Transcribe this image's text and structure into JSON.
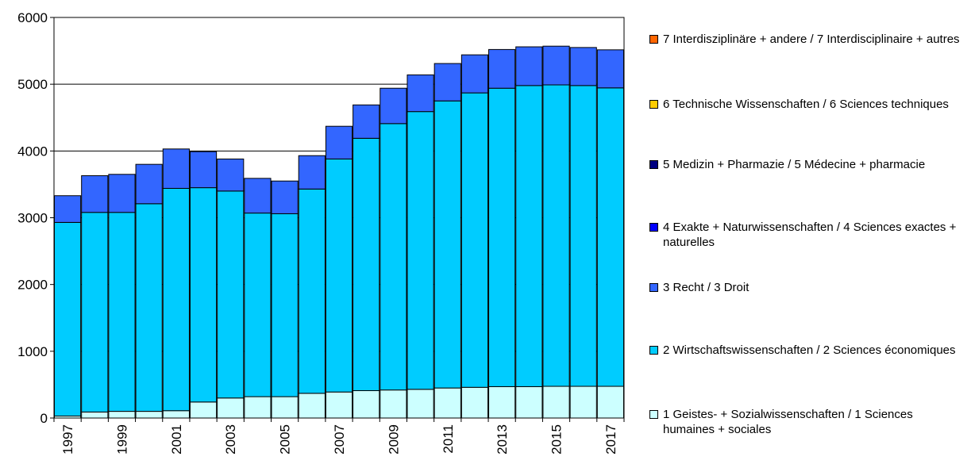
{
  "chart_data": {
    "type": "bar",
    "stacked": true,
    "categories": [
      "1997",
      "1998",
      "1999",
      "2000",
      "2001",
      "2002",
      "2003",
      "2004",
      "2005",
      "2006",
      "2007",
      "2008",
      "2009",
      "2010",
      "2011",
      "2012",
      "2013",
      "2014",
      "2015",
      "2016",
      "2017"
    ],
    "x_tick_labels": [
      "1997",
      "1999",
      "2001",
      "2003",
      "2005",
      "2007",
      "2009",
      "2011",
      "2013",
      "2015",
      "2017"
    ],
    "y_tick_labels": [
      "0",
      "1000",
      "2000",
      "3000",
      "4000",
      "5000",
      "6000"
    ],
    "ylim": [
      0,
      6000
    ],
    "grid": "horizontal",
    "legend_position": "right",
    "series": [
      {
        "name": "1 Geistes- + Sozialwissenschaften / 1 Sciences humaines + sociales",
        "color": "#ccffff",
        "values": [
          30,
          90,
          100,
          100,
          110,
          240,
          300,
          320,
          320,
          370,
          390,
          410,
          420,
          430,
          450,
          460,
          470,
          470,
          475,
          475,
          475
        ]
      },
      {
        "name": "2 Wirtschaftswissenschaften / 2 Sciences économiques",
        "color": "#00ccff",
        "values": [
          2900,
          2990,
          2980,
          3110,
          3330,
          3210,
          3100,
          2750,
          2740,
          3060,
          3490,
          3780,
          3990,
          4160,
          4300,
          4410,
          4470,
          4510,
          4515,
          4505,
          4470
        ]
      },
      {
        "name": "3 Recht / 3 Droit",
        "color": "#3366ff",
        "values": [
          400,
          550,
          570,
          590,
          590,
          540,
          480,
          520,
          490,
          500,
          490,
          500,
          530,
          550,
          560,
          570,
          580,
          580,
          580,
          570,
          570
        ]
      },
      {
        "name": "4 Exakte + Naturwissenschaften / 4 Sciences exactes + naturelles",
        "color": "#0000ff",
        "values": [
          0,
          0,
          0,
          0,
          0,
          0,
          0,
          0,
          0,
          0,
          0,
          0,
          0,
          0,
          0,
          0,
          0,
          0,
          0,
          0,
          0
        ]
      },
      {
        "name": "5 Medizin + Pharmazie / 5 Médecine + pharmacie",
        "color": "#000080",
        "values": [
          0,
          0,
          0,
          0,
          0,
          0,
          0,
          0,
          0,
          0,
          0,
          0,
          0,
          0,
          0,
          0,
          0,
          0,
          0,
          0,
          0
        ]
      },
      {
        "name": "6 Technische Wissenschaften / 6 Sciences techniques",
        "color": "#ffcc00",
        "values": [
          0,
          0,
          0,
          0,
          0,
          0,
          0,
          0,
          0,
          0,
          0,
          0,
          0,
          0,
          0,
          0,
          0,
          0,
          0,
          0,
          0
        ]
      },
      {
        "name": "7 Interdisziplinäre + andere / 7 Interdisciplinaire + autres",
        "color": "#ff6600",
        "values": [
          0,
          0,
          0,
          0,
          0,
          0,
          0,
          0,
          0,
          0,
          0,
          0,
          0,
          0,
          0,
          0,
          0,
          0,
          0,
          0,
          0
        ]
      }
    ]
  }
}
